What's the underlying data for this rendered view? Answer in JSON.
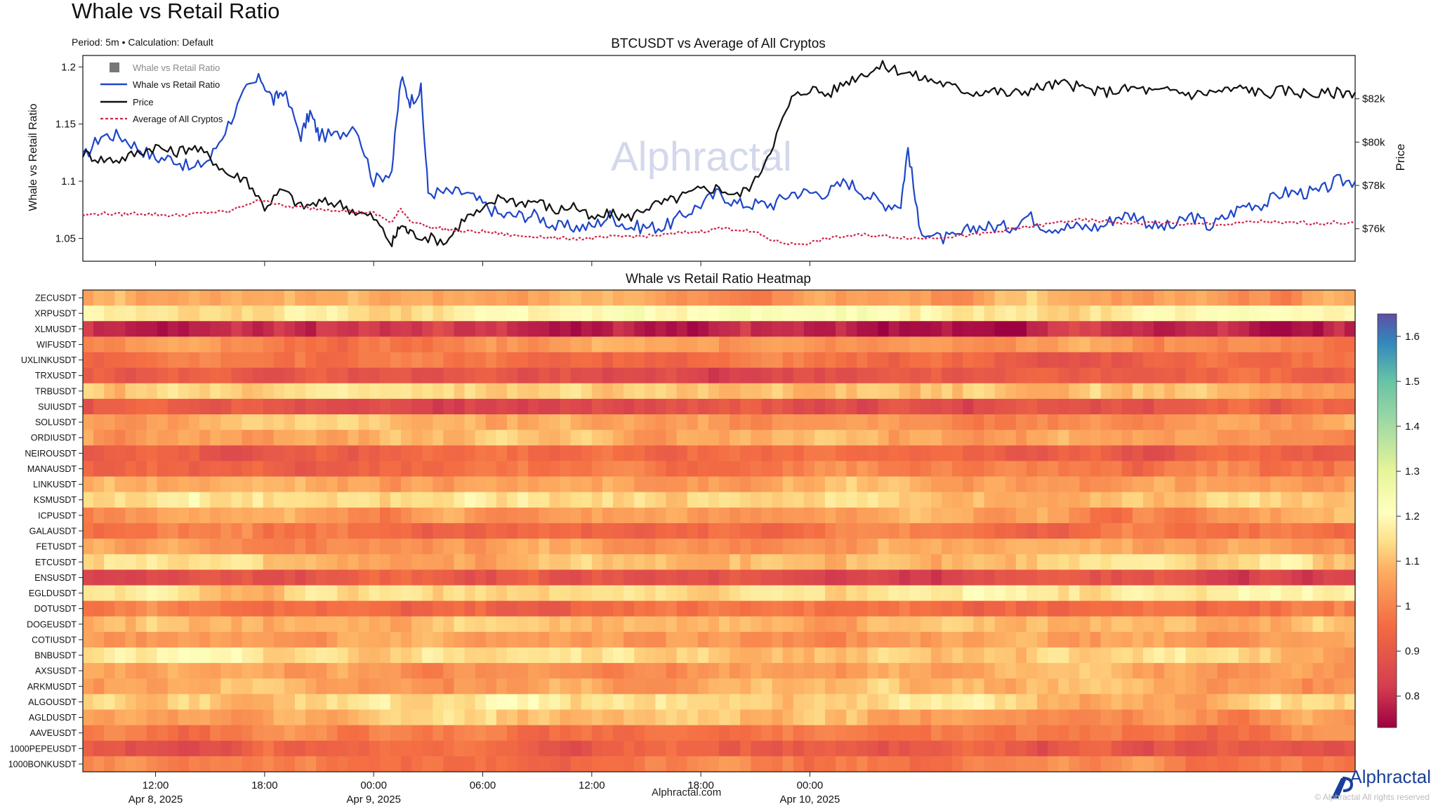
{
  "page": {
    "title": "Whale vs Retail Ratio",
    "subtitle": "Period: 5m • Calculation: Default",
    "site": "Alphractal.com",
    "brand": "Alphractal",
    "watermark": "Alphractal",
    "rights": "© Alphractal All rights reserved"
  },
  "chart_data": [
    {
      "type": "line",
      "title": "BTCUSDT vs Average of All Cryptos",
      "ylabel": "Whale vs Retail Ratio",
      "y2label": "Price",
      "ylim": [
        1.03,
        1.21
      ],
      "y2lim": [
        74500,
        84000
      ],
      "yticks": [
        1.05,
        1.1,
        1.15,
        1.2
      ],
      "yticklabels": [
        "1.05",
        "1.1",
        "1.15",
        "1.2"
      ],
      "y2ticks": [
        76000,
        78000,
        80000,
        82000
      ],
      "y2ticklabels": [
        "$76k",
        "$78k",
        "$80k",
        "$82k"
      ],
      "xlim_hours": [
        8.0,
        78.0
      ],
      "legend_position": "top-left",
      "legend": [
        "Whale vs Retail Ratio",
        "Whale vs Retail Ratio",
        "Price",
        "Average of All Cryptos"
      ],
      "series": [
        {
          "name": "Whale vs Retail Ratio",
          "axis": "left",
          "color": "#1f46c8",
          "x_hours": [
            8.0,
            9,
            10,
            11,
            12,
            13,
            14,
            15,
            16,
            17,
            17.8,
            18.5,
            19,
            20,
            20.5,
            21,
            22,
            23,
            24,
            25,
            25.5,
            26,
            26.6,
            27,
            28,
            29,
            30,
            31,
            32,
            33,
            34,
            35,
            36,
            37,
            38,
            39,
            40,
            41,
            42,
            43,
            44,
            45,
            46,
            47,
            48,
            49,
            50,
            51,
            52,
            53,
            53.4,
            54,
            55,
            56,
            57,
            58,
            59,
            60,
            61,
            62,
            63,
            64,
            65,
            66,
            67,
            68,
            69,
            70,
            71,
            72,
            73,
            74,
            75,
            76,
            77,
            78
          ],
          "values": [
            1.12,
            1.14,
            1.14,
            1.13,
            1.12,
            1.12,
            1.11,
            1.12,
            1.15,
            1.18,
            1.19,
            1.17,
            1.18,
            1.14,
            1.16,
            1.14,
            1.14,
            1.15,
            1.1,
            1.11,
            1.19,
            1.17,
            1.18,
            1.09,
            1.09,
            1.09,
            1.08,
            1.07,
            1.07,
            1.07,
            1.06,
            1.06,
            1.06,
            1.07,
            1.06,
            1.06,
            1.06,
            1.07,
            1.08,
            1.09,
            1.08,
            1.08,
            1.08,
            1.09,
            1.09,
            1.09,
            1.1,
            1.09,
            1.08,
            1.08,
            1.13,
            1.06,
            1.05,
            1.05,
            1.06,
            1.06,
            1.06,
            1.07,
            1.06,
            1.06,
            1.06,
            1.06,
            1.07,
            1.07,
            1.06,
            1.06,
            1.07,
            1.06,
            1.07,
            1.08,
            1.08,
            1.09,
            1.09,
            1.09,
            1.1,
            1.1
          ]
        },
        {
          "name": "Price",
          "axis": "right",
          "color": "#111111",
          "x_hours": [
            8.0,
            9,
            10,
            11,
            12,
            13,
            14,
            15,
            16,
            17,
            18,
            19,
            20,
            21,
            22,
            23,
            24,
            25,
            25.5,
            26,
            27,
            28,
            29,
            30,
            31,
            32,
            33,
            34,
            35,
            36,
            37,
            38,
            39,
            40,
            41,
            42,
            43,
            44,
            45,
            46,
            47,
            48,
            49,
            50,
            51,
            52,
            53,
            54,
            55,
            56,
            57,
            58,
            59,
            60,
            61,
            62,
            63,
            64,
            65,
            66,
            67,
            68,
            69,
            70,
            71,
            72,
            73,
            74,
            75,
            76,
            77,
            78
          ],
          "values": [
            79500,
            79200,
            79200,
            79500,
            79800,
            79500,
            79800,
            79300,
            78500,
            78300,
            77000,
            77800,
            77000,
            77200,
            77200,
            76800,
            76500,
            75300,
            76200,
            75800,
            75600,
            75400,
            76500,
            76800,
            77500,
            77200,
            77300,
            76800,
            77100,
            76400,
            76700,
            76500,
            77000,
            77200,
            77500,
            77800,
            77900,
            77500,
            78200,
            80000,
            82000,
            82500,
            82200,
            82800,
            83200,
            83500,
            83300,
            83000,
            82800,
            82500,
            82300,
            82400,
            82200,
            82400,
            82600,
            82700,
            82500,
            82300,
            82400,
            82500,
            82300,
            82400,
            82200,
            82300,
            82400,
            82500,
            82200,
            82400,
            82300,
            82200,
            82300,
            82300
          ]
        },
        {
          "name": "Average of All Cryptos",
          "axis": "left",
          "color": "#d0244a",
          "x_hours": [
            8.0,
            9,
            10,
            11,
            12,
            13,
            14,
            15,
            16,
            17,
            18,
            19,
            20,
            21,
            22,
            23,
            24,
            25,
            25.5,
            26,
            27,
            28,
            29,
            30,
            31,
            32,
            33,
            34,
            35,
            36,
            37,
            38,
            39,
            40,
            41,
            42,
            43,
            44,
            45,
            46,
            47,
            48,
            49,
            50,
            51,
            52,
            53,
            54,
            55,
            56,
            57,
            58,
            59,
            60,
            61,
            62,
            63,
            64,
            65,
            66,
            67,
            68,
            69,
            70,
            71,
            72,
            73,
            74,
            75,
            76,
            77,
            78
          ],
          "values": [
            1.07,
            1.072,
            1.071,
            1.072,
            1.071,
            1.07,
            1.071,
            1.073,
            1.073,
            1.08,
            1.084,
            1.078,
            1.077,
            1.076,
            1.075,
            1.073,
            1.072,
            1.064,
            1.076,
            1.066,
            1.06,
            1.058,
            1.056,
            1.056,
            1.054,
            1.052,
            1.052,
            1.05,
            1.05,
            1.05,
            1.051,
            1.052,
            1.052,
            1.053,
            1.055,
            1.056,
            1.059,
            1.058,
            1.055,
            1.048,
            1.045,
            1.046,
            1.05,
            1.052,
            1.053,
            1.052,
            1.051,
            1.05,
            1.051,
            1.052,
            1.053,
            1.055,
            1.058,
            1.06,
            1.062,
            1.065,
            1.066,
            1.065,
            1.064,
            1.063,
            1.064,
            1.063,
            1.062,
            1.063,
            1.062,
            1.064,
            1.065,
            1.063,
            1.064,
            1.063,
            1.064,
            1.063
          ]
        }
      ]
    },
    {
      "type": "heatmap",
      "title": "Whale vs Retail Ratio Heatmap",
      "xticks_hours": [
        12,
        18,
        24,
        30,
        36,
        42,
        48
      ],
      "xticklabels": [
        "12:00",
        "18:00",
        "00:00",
        "06:00",
        "12:00",
        "18:00",
        "00:00"
      ],
      "date_labels": [
        {
          "hour": 12,
          "text": "Apr 8, 2025"
        },
        {
          "hour": 24,
          "text": "Apr 9, 2025"
        },
        {
          "hour": 48,
          "text": "Apr 10, 2025"
        }
      ],
      "colorbar": {
        "min": 0.73,
        "max": 1.65,
        "ticks": [
          0.8,
          0.9,
          1,
          1.1,
          1.2,
          1.3,
          1.4,
          1.5,
          1.6
        ],
        "ticklabels": [
          "0.8",
          "0.9",
          "1",
          "1.1",
          "1.2",
          "1.3",
          "1.4",
          "1.5",
          "1.6"
        ]
      },
      "rows": [
        {
          "symbol": "ZECUSDT",
          "base": 1.08
        },
        {
          "symbol": "XRPUSDT",
          "base": 1.18
        },
        {
          "symbol": "XLMUSDT",
          "base": 0.8
        },
        {
          "symbol": "WIFUSDT",
          "base": 1.02
        },
        {
          "symbol": "UXLINKUSDT",
          "base": 0.95
        },
        {
          "symbol": "TRXUSDT",
          "base": 0.9
        },
        {
          "symbol": "TRBUSDT",
          "base": 1.12
        },
        {
          "symbol": "SUIUSDT",
          "base": 0.9
        },
        {
          "symbol": "SOLUSDT",
          "base": 1.05
        },
        {
          "symbol": "ORDIUSDT",
          "base": 1.06
        },
        {
          "symbol": "NEIROUSDT",
          "base": 0.92
        },
        {
          "symbol": "MANAUSDT",
          "base": 0.96
        },
        {
          "symbol": "LINKUSDT",
          "base": 1.07
        },
        {
          "symbol": "KSMUSDT",
          "base": 1.13
        },
        {
          "symbol": "ICPUSDT",
          "base": 1.02
        },
        {
          "symbol": "GALAUSDT",
          "base": 0.97
        },
        {
          "symbol": "FETUSDT",
          "base": 1.05
        },
        {
          "symbol": "ETCUSDT",
          "base": 1.1
        },
        {
          "symbol": "ENSUSDT",
          "base": 0.86
        },
        {
          "symbol": "EGLDUSDT",
          "base": 1.16
        },
        {
          "symbol": "DOTUSDT",
          "base": 0.96
        },
        {
          "symbol": "DOGEUSDT",
          "base": 1.1
        },
        {
          "symbol": "COTIUSDT",
          "base": 1.06
        },
        {
          "symbol": "BNBUSDT",
          "base": 1.12
        },
        {
          "symbol": "AXSUSDT",
          "base": 1.05
        },
        {
          "symbol": "ARKMUSDT",
          "base": 1.07
        },
        {
          "symbol": "ALGOUSDT",
          "base": 1.13
        },
        {
          "symbol": "AGLDUSDT",
          "base": 1.06
        },
        {
          "symbol": "AAVEUSDT",
          "base": 0.99
        },
        {
          "symbol": "1000PEPEUSDT",
          "base": 0.92
        },
        {
          "symbol": "1000BONKUSDT",
          "base": 0.99
        }
      ]
    }
  ]
}
